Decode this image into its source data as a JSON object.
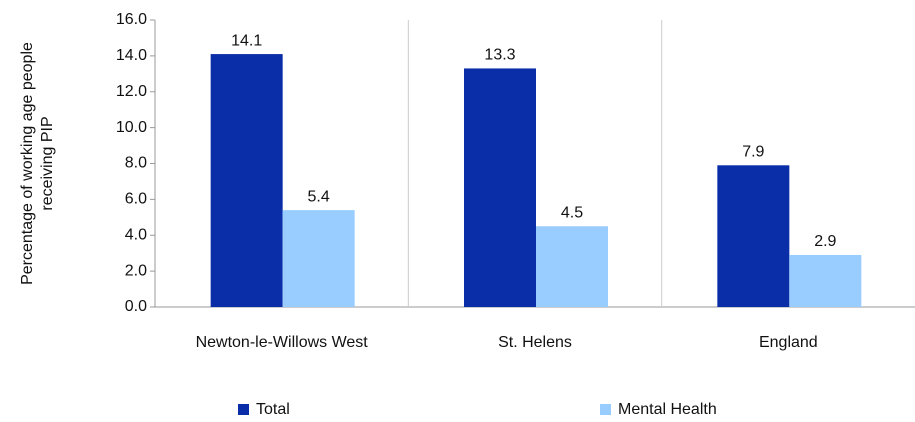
{
  "chart_data": {
    "type": "bar",
    "y_label": [
      "Percentage of working age people",
      "receiving PIP"
    ],
    "categories": [
      "Newton-le-Willows West",
      "St. Helens",
      "England"
    ],
    "series": [
      {
        "name": "Total",
        "color": "#0a2ea8",
        "values": [
          14.1,
          13.3,
          7.9
        ]
      },
      {
        "name": "Mental Health",
        "color": "#99ccff",
        "values": [
          5.4,
          4.5,
          2.9
        ]
      }
    ],
    "ylim": [
      0,
      16
    ],
    "yticks": [
      {
        "value": 0,
        "label": "0.0"
      },
      {
        "value": 2,
        "label": "2.0"
      },
      {
        "value": 4,
        "label": "4.0"
      },
      {
        "value": 6,
        "label": "6.0"
      },
      {
        "value": 8,
        "label": "8.0"
      },
      {
        "value": 10,
        "label": "10.0"
      },
      {
        "value": 12,
        "label": "12.0"
      },
      {
        "value": 14,
        "label": "14.0"
      },
      {
        "value": 16,
        "label": "16.0"
      }
    ],
    "legend": "bottom"
  }
}
